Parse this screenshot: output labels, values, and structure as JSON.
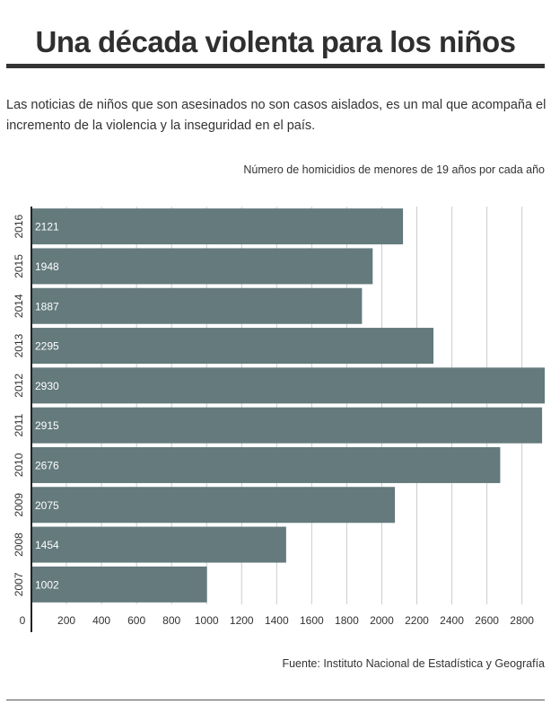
{
  "header": {
    "title": "Una década violenta para los niños",
    "intro": "Las noticias de niños que son asesinados no son casos aislados, es un mal que acompaña el incremento de la violencia y la inseguridad en el país."
  },
  "colors": {
    "bar": "#647a7d",
    "grid": "#cccccc",
    "axis": "#222222",
    "text": "#333333"
  },
  "chart_data": {
    "type": "bar",
    "orientation": "horizontal",
    "title": "Número de homicidios de menores de 19 años por cada año",
    "categories": [
      "2016",
      "2015",
      "2014",
      "2013",
      "2012",
      "2011",
      "2010",
      "2009",
      "2008",
      "2007"
    ],
    "values": [
      2121,
      1948,
      1887,
      2295,
      2930,
      2915,
      2676,
      2075,
      1454,
      1002
    ],
    "xlabel": "",
    "ylabel": "",
    "xlim": [
      0,
      2930
    ],
    "xticks": [
      0,
      200,
      400,
      600,
      800,
      1000,
      1200,
      1400,
      1600,
      1800,
      2000,
      2200,
      2400,
      2600,
      2800
    ],
    "grid": true,
    "data_labels": true,
    "source": "Fuente: Instituto Nacional de Estadística y Geografía"
  }
}
